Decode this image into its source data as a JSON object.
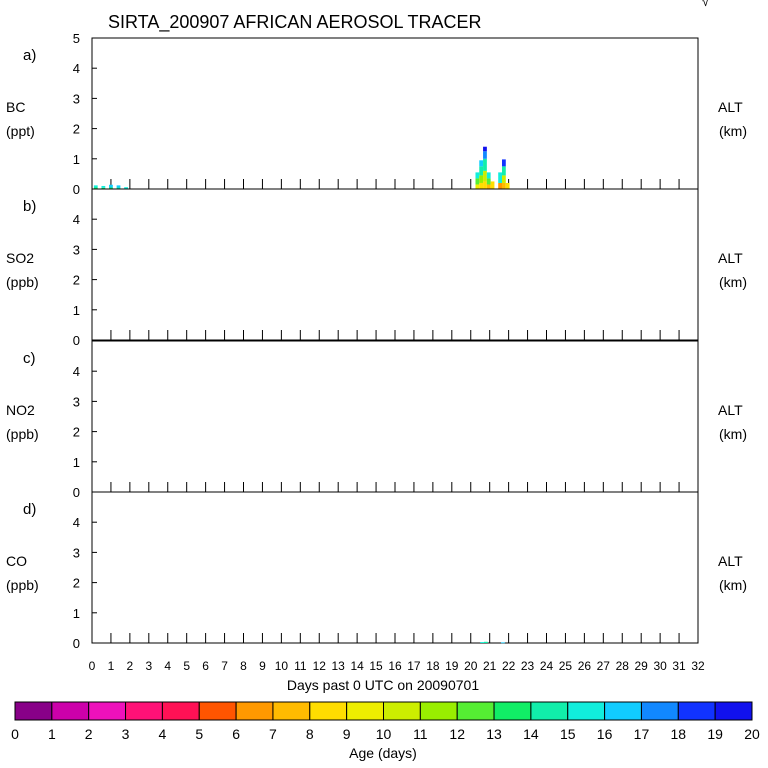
{
  "chart_data": {
    "type": "bar",
    "title": "SIRTA_200907 AFRICAN AEROSOL TRACER",
    "corner_mark": "√",
    "xlabel": "Days past 0 UTC on 20090701",
    "x_ticks": [
      "0",
      "1",
      "2",
      "3",
      "4",
      "5",
      "6",
      "7",
      "8",
      "9",
      "10",
      "11",
      "12",
      "13",
      "14",
      "15",
      "16",
      "17",
      "18",
      "19",
      "20",
      "21",
      "22",
      "23",
      "24",
      "25",
      "26",
      "27",
      "28",
      "29",
      "30",
      "31",
      "32"
    ],
    "xlim": [
      0,
      32
    ],
    "panels": [
      {
        "letter": "a)",
        "name": "BC",
        "unit": "(ppt)",
        "right_label": "ALT",
        "right_unit": "(km)",
        "ylim": [
          0,
          5
        ],
        "y_ticks": [
          "0",
          "1",
          "2",
          "3",
          "4",
          "5"
        ],
        "bars": [
          {
            "x": 0.2,
            "value": 0.12,
            "segments": [
              {
                "to": 0.05,
                "age": 13
              },
              {
                "to": 0.12,
                "age": 15
              }
            ]
          },
          {
            "x": 0.6,
            "value": 0.1,
            "segments": [
              {
                "to": 0.04,
                "age": 13
              },
              {
                "to": 0.1,
                "age": 15
              }
            ]
          },
          {
            "x": 1.0,
            "value": 0.14,
            "segments": [
              {
                "to": 0.05,
                "age": 13
              },
              {
                "to": 0.14,
                "age": 16
              }
            ]
          },
          {
            "x": 1.4,
            "value": 0.12,
            "segments": [
              {
                "to": 0.05,
                "age": 14
              },
              {
                "to": 0.12,
                "age": 16
              }
            ]
          },
          {
            "x": 1.8,
            "value": 0.06,
            "segments": [
              {
                "to": 0.06,
                "age": 15
              }
            ]
          },
          {
            "x": 20.35,
            "value": 0.55,
            "segments": [
              {
                "to": 0.15,
                "age": 9
              },
              {
                "to": 0.35,
                "age": 12
              },
              {
                "to": 0.55,
                "age": 15
              }
            ]
          },
          {
            "x": 20.55,
            "value": 0.95,
            "segments": [
              {
                "to": 0.2,
                "age": 8
              },
              {
                "to": 0.45,
                "age": 11
              },
              {
                "to": 0.75,
                "age": 14
              },
              {
                "to": 0.95,
                "age": 16
              }
            ]
          },
          {
            "x": 20.75,
            "value": 1.4,
            "segments": [
              {
                "to": 0.25,
                "age": 8
              },
              {
                "to": 0.6,
                "age": 10
              },
              {
                "to": 1.0,
                "age": 14
              },
              {
                "to": 1.25,
                "age": 17
              },
              {
                "to": 1.4,
                "age": 19
              }
            ]
          },
          {
            "x": 20.95,
            "value": 0.55,
            "segments": [
              {
                "to": 0.15,
                "age": 7
              },
              {
                "to": 0.35,
                "age": 12
              },
              {
                "to": 0.55,
                "age": 15
              }
            ]
          },
          {
            "x": 21.15,
            "value": 0.25,
            "segments": [
              {
                "to": 0.25,
                "age": 8
              }
            ]
          },
          {
            "x": 21.55,
            "value": 0.55,
            "segments": [
              {
                "to": 0.2,
                "age": 6
              },
              {
                "to": 0.55,
                "age": 15
              }
            ]
          },
          {
            "x": 21.75,
            "value": 0.98,
            "segments": [
              {
                "to": 0.2,
                "age": 7
              },
              {
                "to": 0.45,
                "age": 10
              },
              {
                "to": 0.75,
                "age": 14
              },
              {
                "to": 0.98,
                "age": 18
              }
            ]
          },
          {
            "x": 21.95,
            "value": 0.2,
            "segments": [
              {
                "to": 0.2,
                "age": 8
              }
            ]
          }
        ]
      },
      {
        "letter": "b)",
        "name": "SO2",
        "unit": "(ppb)",
        "right_label": "ALT",
        "right_unit": "(km)",
        "ylim": [
          0,
          5
        ],
        "y_ticks": [
          "0",
          "1",
          "2",
          "3",
          "4"
        ],
        "bars": []
      },
      {
        "letter": "c)",
        "name": "NO2",
        "unit": "(ppb)",
        "right_label": "ALT",
        "right_unit": "(km)",
        "ylim": [
          0,
          5
        ],
        "y_ticks": [
          "0",
          "1",
          "2",
          "3",
          "4"
        ],
        "bars": []
      },
      {
        "letter": "d)",
        "name": "CO",
        "unit": "(ppb)",
        "right_label": "ALT",
        "right_unit": "(km)",
        "ylim": [
          0,
          5
        ],
        "y_ticks": [
          "0",
          "1",
          "2",
          "3",
          "4"
        ],
        "bars": [
          {
            "x": 20.6,
            "value": 0.03,
            "segments": [
              {
                "to": 0.03,
                "age": 15
              }
            ]
          },
          {
            "x": 20.8,
            "value": 0.04,
            "segments": [
              {
                "to": 0.04,
                "age": 14
              }
            ]
          },
          {
            "x": 21.7,
            "value": 0.02,
            "segments": [
              {
                "to": 0.02,
                "age": 16
              }
            ]
          }
        ]
      }
    ],
    "colorbar": {
      "title": "Age (days)",
      "labels": [
        "0",
        "1",
        "2",
        "3",
        "4",
        "5",
        "6",
        "7",
        "8",
        "9",
        "10",
        "11",
        "12",
        "13",
        "14",
        "15",
        "16",
        "17",
        "18",
        "19",
        "20"
      ],
      "colors": [
        "#880088",
        "#cc00aa",
        "#ee11bb",
        "#ff1177",
        "#ff1155",
        "#ff5500",
        "#ff9900",
        "#ffbb00",
        "#ffdd00",
        "#eeee00",
        "#ccee00",
        "#99ee00",
        "#55ee33",
        "#11ee66",
        "#11eeaa",
        "#11eedd",
        "#11ccff",
        "#1188ff",
        "#1133ff",
        "#1111ee",
        "#7711ff"
      ]
    }
  }
}
